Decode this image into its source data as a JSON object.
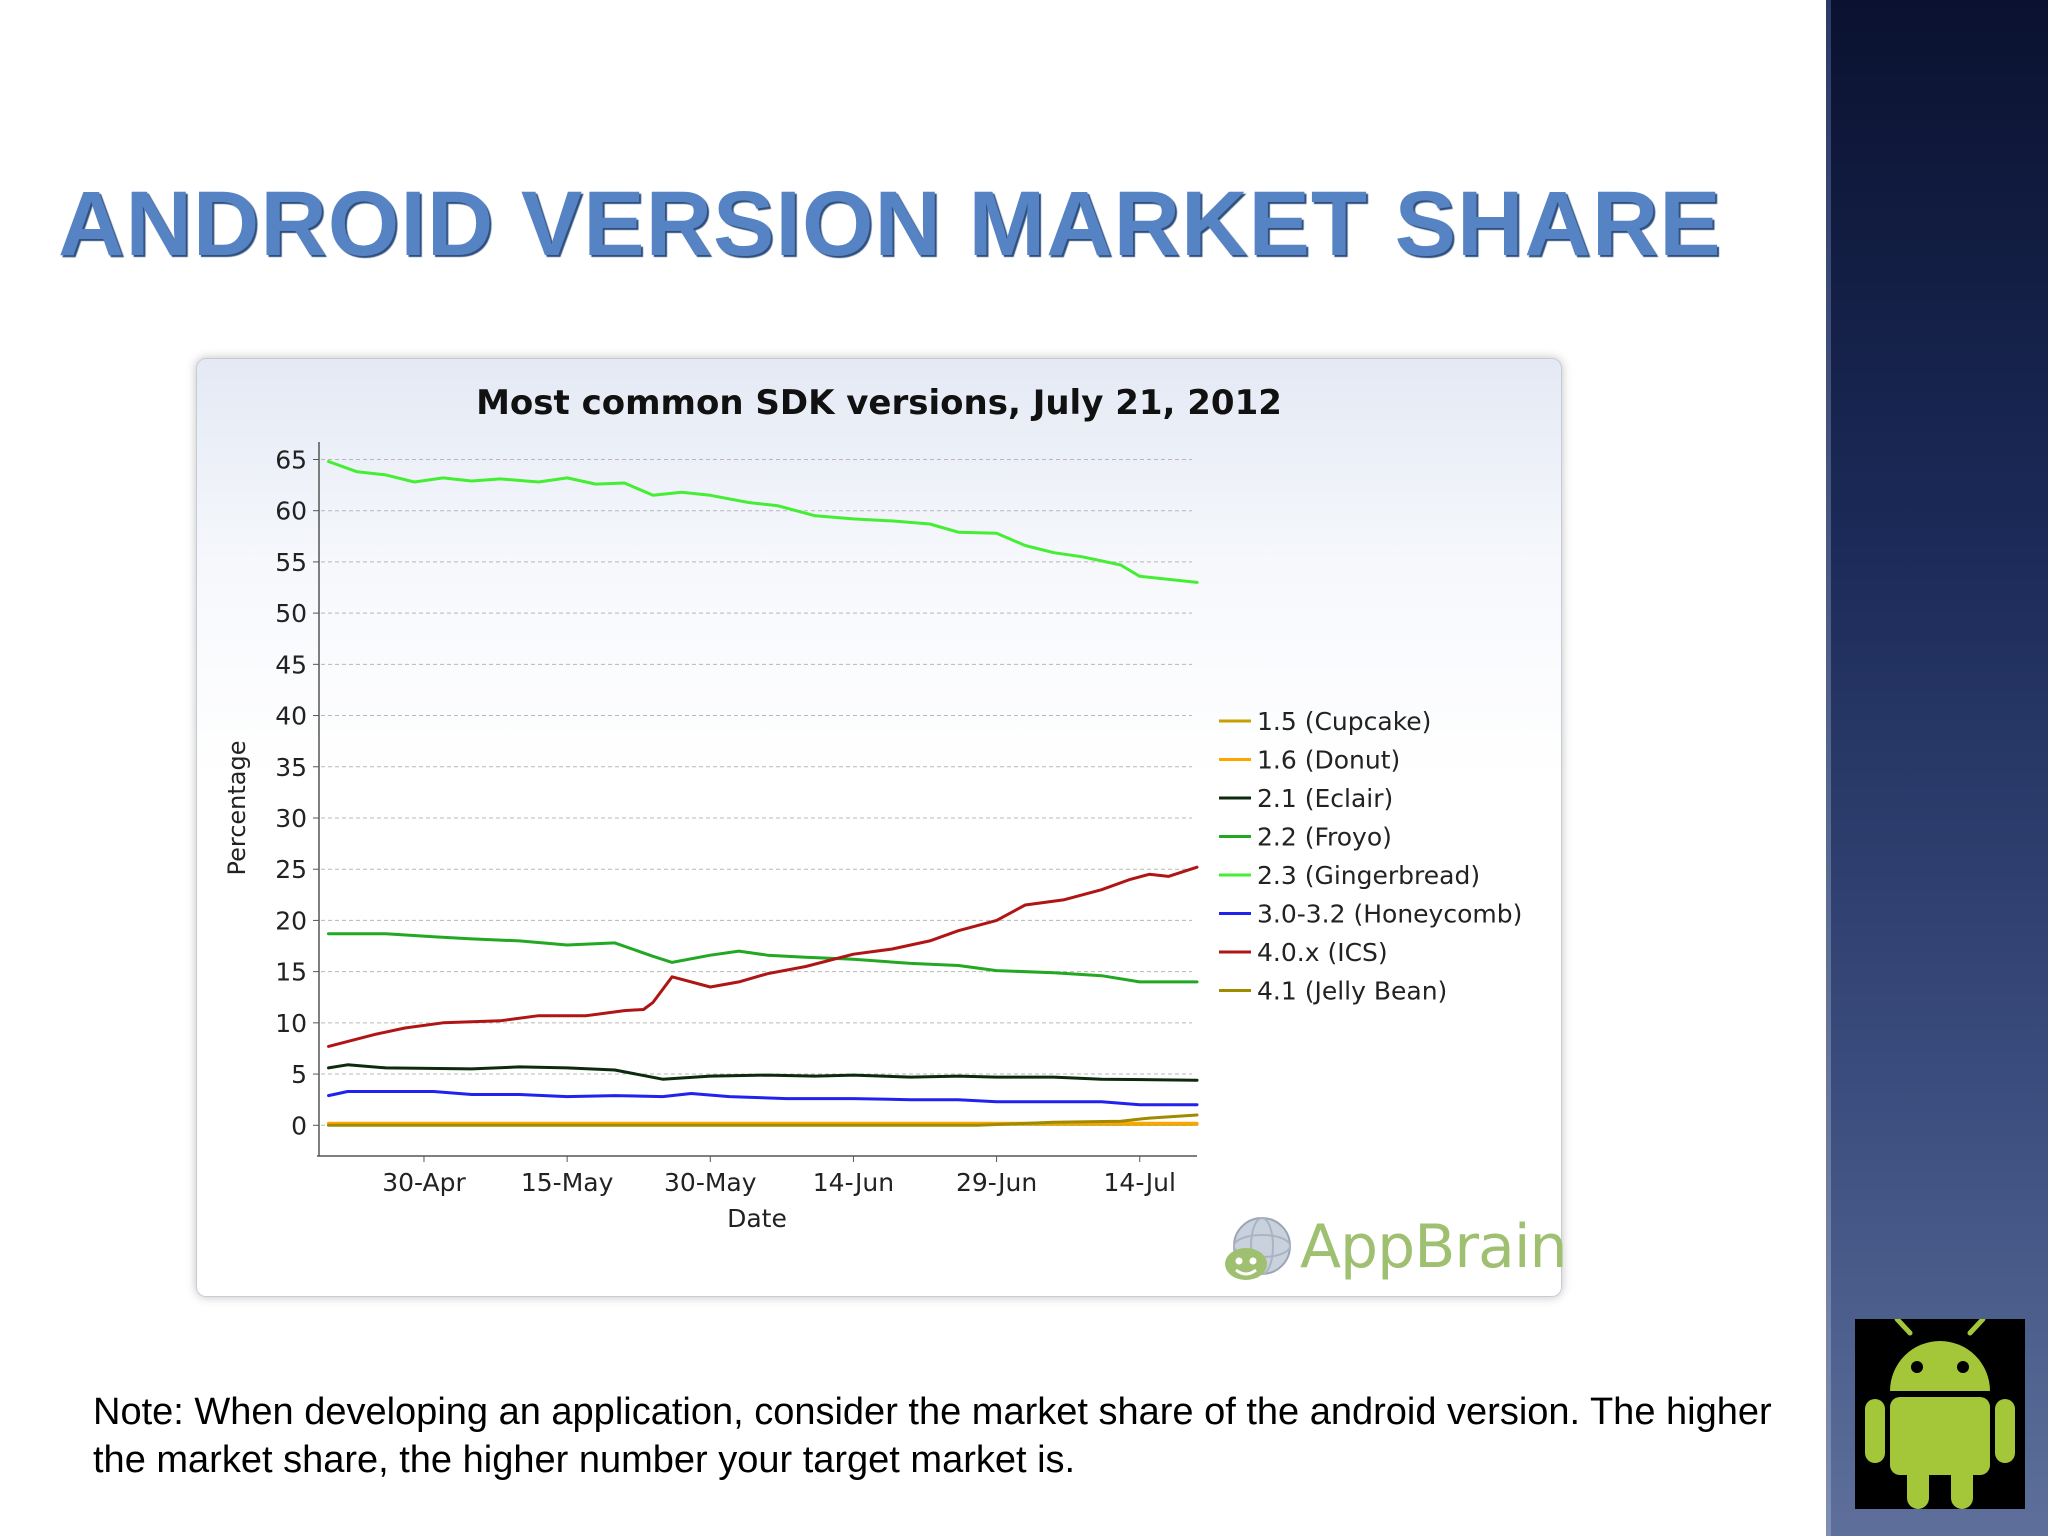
{
  "slide": {
    "title": "ANDROID VERSION MARKET SHARE",
    "note": "Note: When developing an application, consider the market share of the android version. The higher the market share, the higher number your target market is."
  },
  "brand": {
    "name": "AppBrain",
    "icon": "appbrain-globe-icon"
  },
  "badge": {
    "icon": "android-robot-icon",
    "color": "#a4c639"
  },
  "chart_data": {
    "type": "line",
    "title": "Most common SDK versions, July 21, 2012",
    "xlabel": "Date",
    "ylabel": "Percentage",
    "ylim": [
      -3,
      67
    ],
    "yticks": [
      0,
      5,
      10,
      15,
      20,
      25,
      30,
      35,
      40,
      45,
      50,
      55,
      60,
      65
    ],
    "xlim": [
      "2012-04-19",
      "2012-07-20"
    ],
    "xticks": [
      {
        "date": "2012-04-30",
        "label": "30-Apr"
      },
      {
        "date": "2012-05-15",
        "label": "15-May"
      },
      {
        "date": "2012-05-30",
        "label": "30-May"
      },
      {
        "date": "2012-06-14",
        "label": "14-Jun"
      },
      {
        "date": "2012-06-29",
        "label": "29-Jun"
      },
      {
        "date": "2012-07-14",
        "label": "14-Jul"
      }
    ],
    "grid": true,
    "legend_position": "right",
    "series": [
      {
        "name": "1.5 (Cupcake)",
        "color": "#c8a000",
        "points": [
          [
            "2012-04-20",
            0.1
          ],
          [
            "2012-07-20",
            0.1
          ]
        ]
      },
      {
        "name": "1.6 (Donut)",
        "color": "#ffa500",
        "points": [
          [
            "2012-04-20",
            0.2
          ],
          [
            "2012-07-20",
            0.2
          ]
        ]
      },
      {
        "name": "2.1 (Eclair)",
        "color": "#0d2a0d",
        "points": [
          [
            "2012-04-20",
            5.6
          ],
          [
            "2012-04-22",
            5.9
          ],
          [
            "2012-04-26",
            5.6
          ],
          [
            "2012-05-05",
            5.5
          ],
          [
            "2012-05-10",
            5.7
          ],
          [
            "2012-05-15",
            5.6
          ],
          [
            "2012-05-20",
            5.4
          ],
          [
            "2012-05-25",
            4.5
          ],
          [
            "2012-05-30",
            4.8
          ],
          [
            "2012-06-05",
            4.9
          ],
          [
            "2012-06-10",
            4.8
          ],
          [
            "2012-06-14",
            4.9
          ],
          [
            "2012-06-20",
            4.7
          ],
          [
            "2012-06-25",
            4.8
          ],
          [
            "2012-06-29",
            4.7
          ],
          [
            "2012-07-05",
            4.7
          ],
          [
            "2012-07-10",
            4.5
          ],
          [
            "2012-07-20",
            4.4
          ]
        ]
      },
      {
        "name": "2.2 (Froyo)",
        "color": "#22a822",
        "points": [
          [
            "2012-04-20",
            18.7
          ],
          [
            "2012-04-26",
            18.7
          ],
          [
            "2012-05-01",
            18.4
          ],
          [
            "2012-05-05",
            18.2
          ],
          [
            "2012-05-10",
            18.0
          ],
          [
            "2012-05-15",
            17.6
          ],
          [
            "2012-05-20",
            17.8
          ],
          [
            "2012-05-24",
            16.5
          ],
          [
            "2012-05-26",
            15.9
          ],
          [
            "2012-05-30",
            16.6
          ],
          [
            "2012-06-02",
            17.0
          ],
          [
            "2012-06-05",
            16.6
          ],
          [
            "2012-06-09",
            16.4
          ],
          [
            "2012-06-14",
            16.2
          ],
          [
            "2012-06-20",
            15.8
          ],
          [
            "2012-06-25",
            15.6
          ],
          [
            "2012-06-29",
            15.1
          ],
          [
            "2012-07-05",
            14.9
          ],
          [
            "2012-07-10",
            14.6
          ],
          [
            "2012-07-14",
            14.0
          ],
          [
            "2012-07-20",
            14.0
          ]
        ]
      },
      {
        "name": "2.3 (Gingerbread)",
        "color": "#44ee33",
        "points": [
          [
            "2012-04-20",
            64.8
          ],
          [
            "2012-04-23",
            63.8
          ],
          [
            "2012-04-26",
            63.5
          ],
          [
            "2012-04-29",
            62.8
          ],
          [
            "2012-05-02",
            63.2
          ],
          [
            "2012-05-05",
            62.9
          ],
          [
            "2012-05-08",
            63.1
          ],
          [
            "2012-05-12",
            62.8
          ],
          [
            "2012-05-15",
            63.2
          ],
          [
            "2012-05-18",
            62.6
          ],
          [
            "2012-05-21",
            62.7
          ],
          [
            "2012-05-24",
            61.5
          ],
          [
            "2012-05-27",
            61.8
          ],
          [
            "2012-05-30",
            61.5
          ],
          [
            "2012-06-03",
            60.8
          ],
          [
            "2012-06-06",
            60.5
          ],
          [
            "2012-06-10",
            59.5
          ],
          [
            "2012-06-14",
            59.2
          ],
          [
            "2012-06-18",
            59.0
          ],
          [
            "2012-06-22",
            58.7
          ],
          [
            "2012-06-25",
            57.9
          ],
          [
            "2012-06-29",
            57.8
          ],
          [
            "2012-07-02",
            56.6
          ],
          [
            "2012-07-05",
            55.9
          ],
          [
            "2012-07-08",
            55.5
          ],
          [
            "2012-07-12",
            54.7
          ],
          [
            "2012-07-14",
            53.6
          ],
          [
            "2012-07-20",
            53.0
          ]
        ]
      },
      {
        "name": "3.0-3.2 (Honeycomb)",
        "color": "#2222ee",
        "points": [
          [
            "2012-04-20",
            2.9
          ],
          [
            "2012-04-22",
            3.3
          ],
          [
            "2012-05-01",
            3.3
          ],
          [
            "2012-05-05",
            3.0
          ],
          [
            "2012-05-10",
            3.0
          ],
          [
            "2012-05-15",
            2.8
          ],
          [
            "2012-05-20",
            2.9
          ],
          [
            "2012-05-25",
            2.8
          ],
          [
            "2012-05-28",
            3.1
          ],
          [
            "2012-06-01",
            2.8
          ],
          [
            "2012-06-07",
            2.6
          ],
          [
            "2012-06-14",
            2.6
          ],
          [
            "2012-06-20",
            2.5
          ],
          [
            "2012-06-25",
            2.5
          ],
          [
            "2012-06-29",
            2.3
          ],
          [
            "2012-07-05",
            2.3
          ],
          [
            "2012-07-10",
            2.3
          ],
          [
            "2012-07-14",
            2.0
          ],
          [
            "2012-07-20",
            2.0
          ]
        ]
      },
      {
        "name": "4.0.x (ICS)",
        "color": "#b01515",
        "points": [
          [
            "2012-04-20",
            7.7
          ],
          [
            "2012-04-25",
            8.9
          ],
          [
            "2012-04-28",
            9.5
          ],
          [
            "2012-05-02",
            10.0
          ],
          [
            "2012-05-08",
            10.2
          ],
          [
            "2012-05-12",
            10.7
          ],
          [
            "2012-05-17",
            10.7
          ],
          [
            "2012-05-21",
            11.2
          ],
          [
            "2012-05-23",
            11.3
          ],
          [
            "2012-05-24",
            12.0
          ],
          [
            "2012-05-26",
            14.5
          ],
          [
            "2012-05-30",
            13.5
          ],
          [
            "2012-06-02",
            14.0
          ],
          [
            "2012-06-05",
            14.8
          ],
          [
            "2012-06-09",
            15.5
          ],
          [
            "2012-06-14",
            16.7
          ],
          [
            "2012-06-18",
            17.2
          ],
          [
            "2012-06-22",
            18.0
          ],
          [
            "2012-06-25",
            19.0
          ],
          [
            "2012-06-29",
            20.0
          ],
          [
            "2012-07-02",
            21.5
          ],
          [
            "2012-07-06",
            22.0
          ],
          [
            "2012-07-10",
            23.0
          ],
          [
            "2012-07-13",
            24.0
          ],
          [
            "2012-07-15",
            24.5
          ],
          [
            "2012-07-17",
            24.3
          ],
          [
            "2012-07-20",
            25.2
          ]
        ]
      },
      {
        "name": "4.1 (Jelly Bean)",
        "color": "#a08a00",
        "points": [
          [
            "2012-04-20",
            0.0
          ],
          [
            "2012-06-27",
            0.0
          ],
          [
            "2012-07-05",
            0.3
          ],
          [
            "2012-07-12",
            0.4
          ],
          [
            "2012-07-15",
            0.7
          ],
          [
            "2012-07-20",
            1.0
          ]
        ]
      }
    ]
  }
}
